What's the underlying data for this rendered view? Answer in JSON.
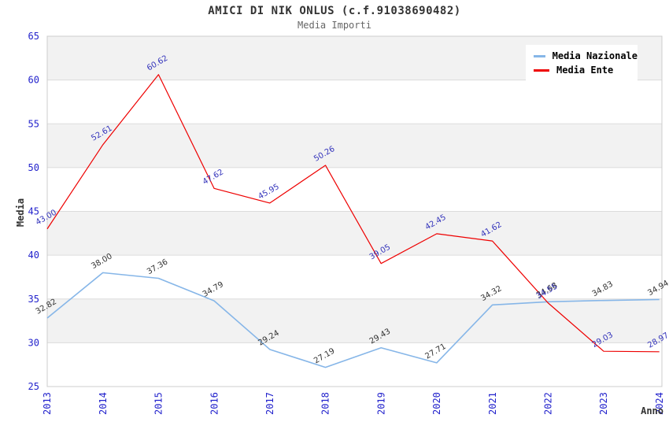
{
  "chart_data": {
    "type": "line",
    "title": "AMICI DI NIK ONLUS (c.f.91038690482)",
    "subtitle": "Media Importi",
    "xlabel": "Anno",
    "ylabel": "Media",
    "ylim": [
      25,
      65
    ],
    "ytick_step": 5,
    "grid": true,
    "legend_position": "top-right",
    "plot_band_color": "#f2f2f2",
    "gridline_color": "#dcdcdc",
    "plot_border_color": "#cccccc",
    "tick_label_color": "#2222cc",
    "axis_title_color": "#333333",
    "categories": [
      "2013",
      "2014",
      "2015",
      "2016",
      "2017",
      "2018",
      "2019",
      "2020",
      "2021",
      "2022",
      "2023",
      "2024"
    ],
    "series": [
      {
        "name": "Media Nazionale",
        "color": "#86b6e8",
        "label_color": "#333333",
        "values": [
          32.82,
          38.0,
          37.36,
          34.79,
          29.24,
          27.19,
          29.43,
          27.71,
          34.32,
          34.68,
          34.83,
          34.94
        ]
      },
      {
        "name": "Media Ente",
        "color": "#ee0000",
        "label_color": "#3333bb",
        "values": [
          43.0,
          52.61,
          60.62,
          47.62,
          45.95,
          50.26,
          39.05,
          42.45,
          41.62,
          34.55,
          29.03,
          28.97
        ]
      }
    ]
  }
}
